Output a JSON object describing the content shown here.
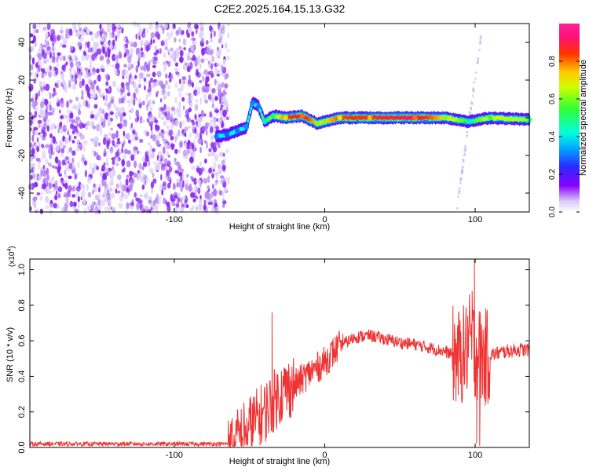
{
  "figure_title": "C2E2.2025.164.15.13.G32",
  "colorbar": {
    "label": "Normalized spectral amplitude",
    "ticks": [
      "0.0",
      "0.2",
      "0.4",
      "0.6",
      "0.8"
    ],
    "tick_values": [
      0,
      0.2,
      0.4,
      0.6,
      0.8
    ],
    "range": [
      0,
      1
    ]
  },
  "chart_data": [
    {
      "type": "heatmap",
      "title": "",
      "xlabel": "Height of straight line (km)",
      "ylabel": "Frequency (Hz)",
      "xlim": [
        -196,
        136
      ],
      "ylim": [
        -50,
        50
      ],
      "xticks": [
        -100,
        0,
        100
      ],
      "xtick_labels": [
        "-100",
        "0",
        "100"
      ],
      "yticks": [
        -40,
        -20,
        0,
        20,
        40
      ],
      "ytick_labels": [
        "-40",
        "-20",
        "0",
        "20",
        "40"
      ],
      "noise_region": {
        "x_range": [
          -196,
          -64
        ],
        "y_range": [
          -50,
          50
        ],
        "amplitude": 0.05
      },
      "dispersion_track": [
        {
          "x": -72,
          "y": -10,
          "amp": 0.3
        },
        {
          "x": -65,
          "y": -9,
          "amp": 0.28
        },
        {
          "x": -58,
          "y": -7,
          "amp": 0.3
        },
        {
          "x": -52,
          "y": -5,
          "amp": 0.32
        },
        {
          "x": -48,
          "y": 8,
          "amp": 0.3
        },
        {
          "x": -44,
          "y": 6,
          "amp": 0.3
        },
        {
          "x": -40,
          "y": -2,
          "amp": 0.4
        },
        {
          "x": -34,
          "y": 1,
          "amp": 0.5
        },
        {
          "x": -26,
          "y": 0,
          "amp": 0.7
        },
        {
          "x": -15,
          "y": 1,
          "amp": 0.8
        },
        {
          "x": -5,
          "y": -3,
          "amp": 0.6
        },
        {
          "x": 0,
          "y": -2,
          "amp": 0.6
        },
        {
          "x": 10,
          "y": 0,
          "amp": 0.7
        },
        {
          "x": 30,
          "y": 0,
          "amp": 0.75
        },
        {
          "x": 60,
          "y": 0,
          "amp": 0.8
        },
        {
          "x": 80,
          "y": 0,
          "amp": 0.6
        },
        {
          "x": 96,
          "y": -2,
          "amp": 0.4
        },
        {
          "x": 110,
          "y": 0,
          "amp": 0.55
        },
        {
          "x": 136,
          "y": -1,
          "amp": 0.5
        }
      ]
    },
    {
      "type": "line",
      "title": "",
      "xlabel": "Height of straight line (km)",
      "ylabel": "SNR (10 * v/v)",
      "y_multiplier": "(x10",
      "y_multiplier_exp": "4",
      "y_multiplier_close": ")",
      "xlim": [
        -196,
        136
      ],
      "ylim": [
        0,
        1.06
      ],
      "xticks": [
        -100,
        0,
        100
      ],
      "xtick_labels": [
        "-100",
        "0",
        "100"
      ],
      "yticks": [
        0,
        0.2,
        0.4,
        0.6,
        0.8,
        1.0
      ],
      "ytick_labels": [
        "0.0",
        "0.2",
        "0.4",
        "0.6",
        "0.8",
        "1.0"
      ],
      "color": "#ee3333",
      "envelope": {
        "x": [
          -196,
          -150,
          -110,
          -80,
          -64,
          -58,
          -52,
          -46,
          -40,
          -34,
          -30,
          -25,
          -20,
          -10,
          0,
          5,
          10,
          20,
          30,
          40,
          50,
          60,
          70,
          80,
          86,
          90,
          94,
          97,
          100,
          103,
          106,
          110,
          120,
          130,
          136
        ],
        "y": [
          0.02,
          0.02,
          0.02,
          0.02,
          0.02,
          0.05,
          0.1,
          0.15,
          0.2,
          0.26,
          0.3,
          0.33,
          0.35,
          0.42,
          0.48,
          0.53,
          0.57,
          0.62,
          0.63,
          0.61,
          0.59,
          0.58,
          0.56,
          0.54,
          0.52,
          0.5,
          0.55,
          0.6,
          0.55,
          0.52,
          0.5,
          0.52,
          0.54,
          0.55,
          0.55
        ]
      },
      "peaks": [
        {
          "x": -35,
          "y": 0.76
        },
        {
          "x": -26,
          "y": 0.44
        },
        {
          "x": 12,
          "y": 0.64
        },
        {
          "x": 95,
          "y": 0.74
        },
        {
          "x": 98,
          "y": 0.88
        },
        {
          "x": 99.5,
          "y": 1.06
        },
        {
          "x": 101,
          "y": 0.02
        },
        {
          "x": 103,
          "y": 0.01
        }
      ]
    }
  ]
}
